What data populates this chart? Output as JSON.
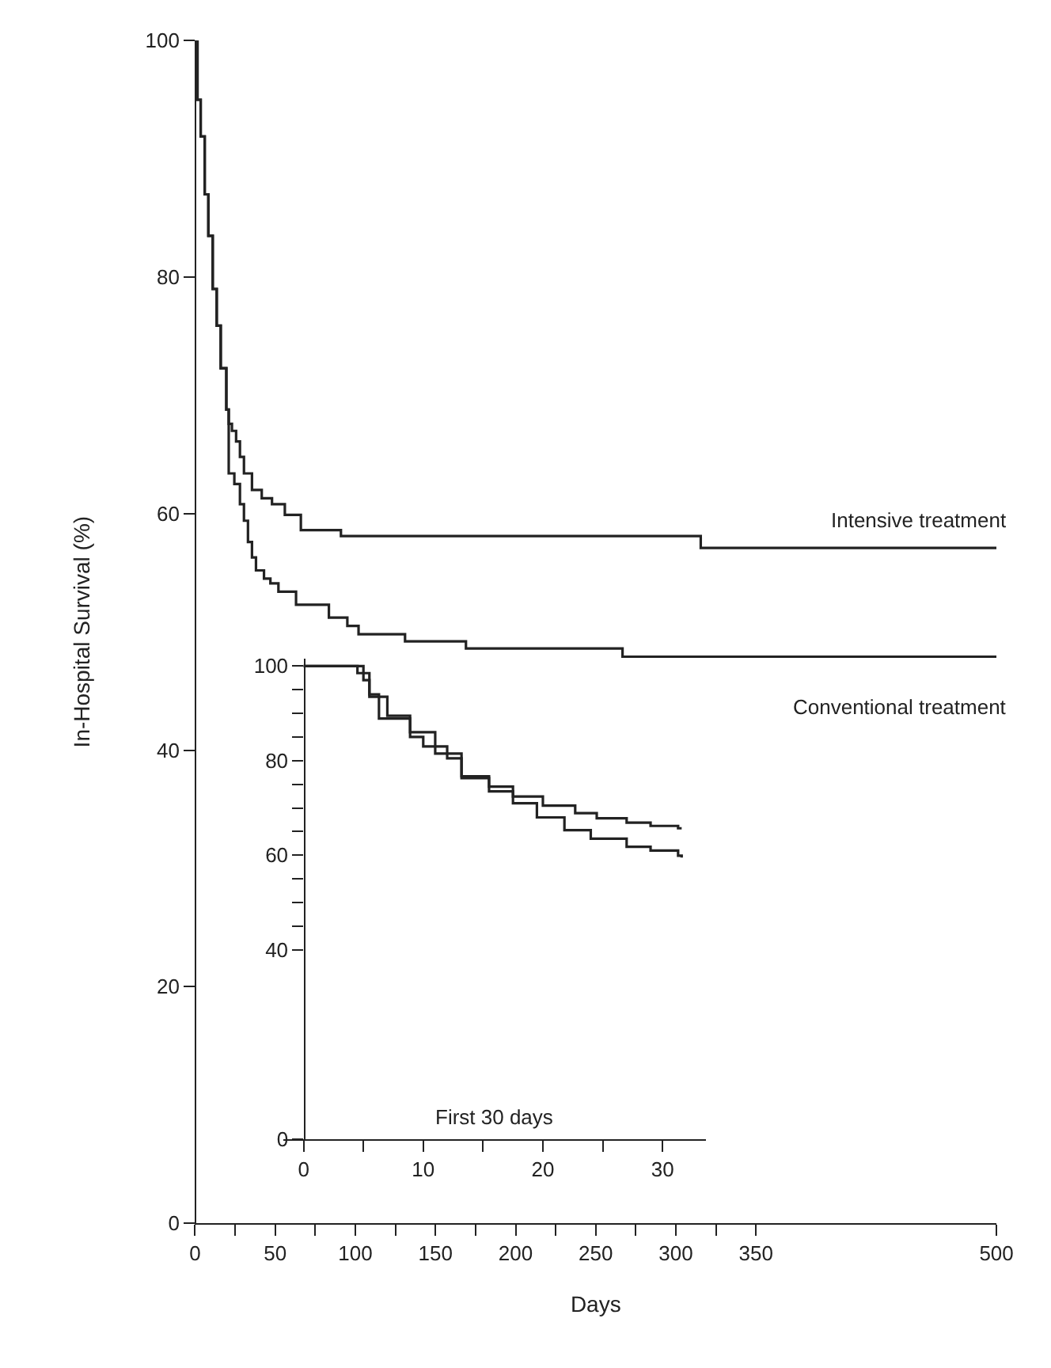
{
  "chart_data": [
    {
      "type": "step",
      "xlabel": "Days",
      "ylabel": "In-Hospital Survival (%)",
      "xlim": [
        0,
        500
      ],
      "ylim": [
        0,
        100
      ],
      "xticks": [
        0,
        {
          "value": 25,
          "label": null
        },
        50,
        {
          "value": 75,
          "label": null
        },
        100,
        {
          "value": 125,
          "label": null
        },
        150,
        {
          "value": 175,
          "label": null
        },
        200,
        {
          "value": 225,
          "label": null
        },
        250,
        {
          "value": 275,
          "label": null
        },
        300,
        {
          "value": 325,
          "label": null
        },
        350,
        500
      ],
      "yticks": [
        0,
        20,
        40,
        60,
        80,
        100
      ],
      "series": [
        {
          "name": "Intensive treatment",
          "color": "#222222",
          "x": [
            0,
            1.5,
            3.5,
            6,
            8.3,
            11,
            13.5,
            16,
            19.5,
            21,
            23,
            25.6,
            28,
            30.5,
            35.5,
            41.6,
            48,
            56,
            66,
            91,
            315.5,
            375,
            500
          ],
          "values": [
            100,
            95,
            91.9,
            87,
            83.5,
            79,
            75.9,
            72.3,
            68.8,
            67.6,
            67,
            66.1,
            64.8,
            63.4,
            62,
            61.3,
            60.8,
            59.9,
            58.6,
            58.1,
            57.1,
            57.1,
            57.1
          ]
        },
        {
          "name": "Conventional treatment",
          "color": "#222222",
          "x": [
            0,
            1.5,
            3.5,
            6,
            8.3,
            11,
            13.5,
            16,
            19.5,
            21,
            24.5,
            28,
            30.5,
            33,
            35.5,
            38,
            43,
            47,
            52,
            63,
            83.5,
            95,
            102,
            131,
            169,
            266.7,
            375,
            500
          ],
          "values": [
            100,
            95,
            91.9,
            87,
            83.5,
            79,
            75.9,
            72.3,
            68.8,
            63.4,
            62.5,
            60.8,
            59.4,
            57.6,
            56.3,
            55.2,
            54.5,
            54.1,
            53.4,
            52.3,
            51.2,
            50.5,
            49.8,
            49.2,
            48.6,
            47.9,
            47.9,
            47.9
          ]
        }
      ]
    },
    {
      "type": "step",
      "annotations": [
        "First 30 days"
      ],
      "xlim": [
        -1.7,
        33.6
      ],
      "ylim": [
        0,
        101.5
      ],
      "xticks": [
        0,
        {
          "value": 5,
          "label": null
        },
        10,
        {
          "value": 15,
          "label": null
        },
        20,
        {
          "value": 25,
          "label": null
        },
        30
      ],
      "yticks": [
        0,
        40,
        {
          "value": 45,
          "label": null
        },
        {
          "value": 50,
          "label": null
        },
        {
          "value": 55,
          "label": null
        },
        60,
        {
          "value": 65,
          "label": null
        },
        {
          "value": 70,
          "label": null
        },
        {
          "value": 75,
          "label": null
        },
        80,
        {
          "value": 85,
          "label": null
        },
        {
          "value": 90,
          "label": null
        },
        {
          "value": 95,
          "label": null
        },
        100
      ],
      "series": [
        {
          "color": "#222222",
          "x": [
            0,
            4.5,
            5,
            5.5,
            7,
            8.9,
            10,
            12,
            13.2,
            15.5,
            17.5,
            20,
            22.7,
            24.5,
            27,
            29,
            31.3,
            31.6
          ],
          "values": [
            100,
            100,
            97,
            93.5,
            89.5,
            85,
            83,
            80.5,
            76.7,
            74.5,
            72.4,
            70.5,
            68.9,
            67.8,
            66.9,
            66.2,
            65.7,
            65.7
          ]
        },
        {
          "color": "#222222",
          "x": [
            0,
            4,
            4.5,
            5.5,
            6.3,
            8.9,
            11,
            13.2,
            15.5,
            17.5,
            19.5,
            21.8,
            24,
            27,
            29,
            31.3,
            31.6
          ],
          "values": [
            100,
            100,
            98.5,
            94,
            88.9,
            86,
            81.5,
            76.3,
            73.5,
            71,
            68,
            65.3,
            63.5,
            61.8,
            61,
            59.9,
            59.5
          ]
        }
      ]
    }
  ]
}
